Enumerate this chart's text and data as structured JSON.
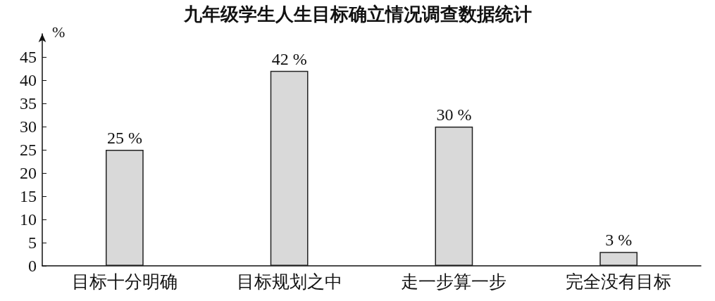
{
  "chart_data": {
    "type": "bar",
    "title": "九年级学生人生目标确立情况调查数据统计",
    "ylabel": "%",
    "categories": [
      "目标十分明确",
      "目标规划之中",
      "走一步算一步",
      "完全没有目标"
    ],
    "values": [
      25,
      42,
      30,
      3
    ],
    "color": "#d9d9d9",
    "value_labels": [
      "25 %",
      "42 %",
      "30 %",
      "3 %"
    ],
    "ylim": [
      0,
      50
    ],
    "yticks": [
      0,
      5,
      10,
      15,
      20,
      25,
      30,
      35,
      40,
      45
    ]
  }
}
